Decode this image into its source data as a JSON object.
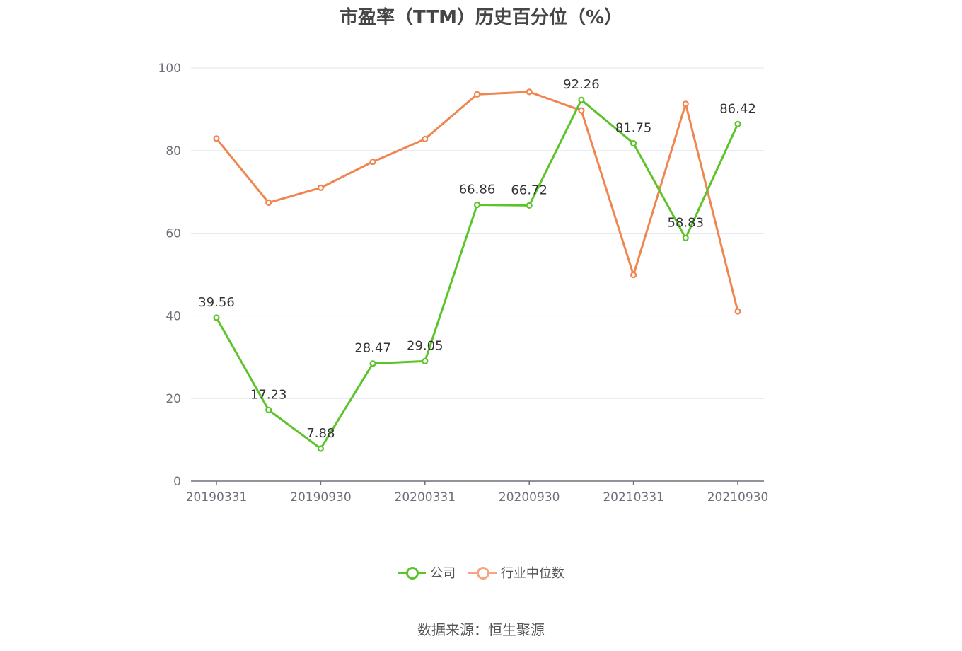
{
  "title": "市盈率（TTM）历史百分位（%）",
  "source": "数据来源：恒生聚源",
  "colors": {
    "company": "#5cc42b",
    "industry": "#f0854f",
    "industry_legend": "#f4a582",
    "grid": "#e3e6ef",
    "axis": "#6e7079"
  },
  "chart_data": {
    "type": "line",
    "x": [
      "20190331",
      "20190630",
      "20190930",
      "20191231",
      "20200331",
      "20200630",
      "20200930",
      "20201231",
      "20210331",
      "20210630",
      "20210930"
    ],
    "x_tick_labels": [
      "20190331",
      "20190930",
      "20200331",
      "20200930",
      "20210331",
      "20210930"
    ],
    "ylim": [
      0,
      100
    ],
    "y_ticks": [
      0,
      20,
      40,
      60,
      80,
      100
    ],
    "series": [
      {
        "name": "公司",
        "values": [
          39.56,
          17.23,
          7.88,
          28.47,
          29.05,
          66.86,
          66.72,
          92.26,
          81.75,
          58.83,
          86.42
        ],
        "labels": [
          "39.56",
          "17.23",
          "7.88",
          "28.47",
          "29.05",
          "66.86",
          "66.72",
          "92.26",
          "81.75",
          "58.83",
          "86.42"
        ]
      },
      {
        "name": "行业中位数",
        "values": [
          82.9,
          67.4,
          71.0,
          77.3,
          82.8,
          93.6,
          94.2,
          89.7,
          49.9,
          91.3,
          41.1
        ]
      }
    ],
    "legend_position": "bottom",
    "grid": true
  }
}
